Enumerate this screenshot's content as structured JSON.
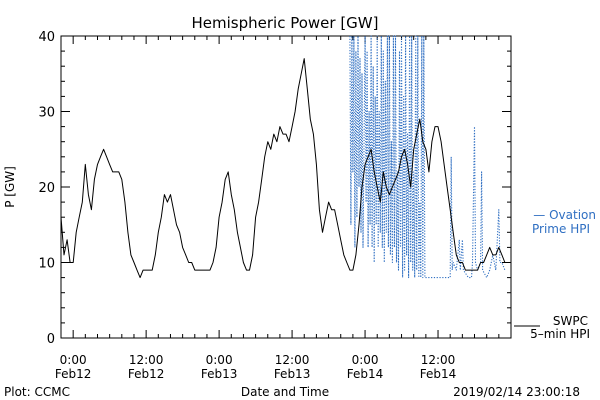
{
  "chart_data": {
    "type": "line",
    "title": "Hemispheric Power [GW]",
    "ylabel": "P [GW]",
    "xlabel": "Date and Time",
    "ylim": [
      0,
      40
    ],
    "xlim": [
      "2019-02-11T22:00",
      "2019-02-15T00:00"
    ],
    "y_ticks": [
      "0",
      "10",
      "20",
      "30",
      "40"
    ],
    "x_ticks": [
      {
        "time": "2019-02-12T00:00",
        "line1": "0:00",
        "line2": "Feb12"
      },
      {
        "time": "2019-02-12T12:00",
        "line1": "12:00",
        "line2": "Feb12"
      },
      {
        "time": "2019-02-13T00:00",
        "line1": "0:00",
        "line2": "Feb13"
      },
      {
        "time": "2019-02-13T12:00",
        "line1": "12:00",
        "line2": "Feb13"
      },
      {
        "time": "2019-02-14T00:00",
        "line1": "0:00",
        "line2": "Feb14"
      },
      {
        "time": "2019-02-14T12:00",
        "line1": "12:00",
        "line2": "Feb14"
      }
    ],
    "grid": false,
    "series": [
      {
        "name": "SWPC 5-min HPI",
        "color": "#000000",
        "style": "solid",
        "points": [
          [
            "2019-02-11T22:00",
            16
          ],
          [
            "2019-02-11T22:30",
            11
          ],
          [
            "2019-02-11T23:00",
            13
          ],
          [
            "2019-02-11T23:30",
            10
          ],
          [
            "2019-02-12T00:00",
            10
          ],
          [
            "2019-02-12T00:30",
            14
          ],
          [
            "2019-02-12T01:00",
            16
          ],
          [
            "2019-02-12T01:30",
            18
          ],
          [
            "2019-02-12T02:00",
            23
          ],
          [
            "2019-02-12T02:30",
            19
          ],
          [
            "2019-02-12T03:00",
            17
          ],
          [
            "2019-02-12T03:30",
            21
          ],
          [
            "2019-02-12T04:00",
            23
          ],
          [
            "2019-02-12T04:30",
            24
          ],
          [
            "2019-02-12T05:00",
            25
          ],
          [
            "2019-02-12T05:30",
            24
          ],
          [
            "2019-02-12T06:00",
            23
          ],
          [
            "2019-02-12T06:30",
            22
          ],
          [
            "2019-02-12T07:00",
            22
          ],
          [
            "2019-02-12T07:30",
            22
          ],
          [
            "2019-02-12T08:00",
            21
          ],
          [
            "2019-02-12T08:30",
            18
          ],
          [
            "2019-02-12T09:00",
            14
          ],
          [
            "2019-02-12T09:30",
            11
          ],
          [
            "2019-02-12T10:00",
            10
          ],
          [
            "2019-02-12T10:30",
            9
          ],
          [
            "2019-02-12T11:00",
            8
          ],
          [
            "2019-02-12T11:30",
            9
          ],
          [
            "2019-02-12T12:00",
            9
          ],
          [
            "2019-02-12T12:30",
            9
          ],
          [
            "2019-02-12T13:00",
            9
          ],
          [
            "2019-02-12T13:30",
            11
          ],
          [
            "2019-02-12T14:00",
            14
          ],
          [
            "2019-02-12T14:30",
            16
          ],
          [
            "2019-02-12T15:00",
            19
          ],
          [
            "2019-02-12T15:30",
            18
          ],
          [
            "2019-02-12T16:00",
            19
          ],
          [
            "2019-02-12T16:30",
            17
          ],
          [
            "2019-02-12T17:00",
            15
          ],
          [
            "2019-02-12T17:30",
            14
          ],
          [
            "2019-02-12T18:00",
            12
          ],
          [
            "2019-02-12T18:30",
            11
          ],
          [
            "2019-02-12T19:00",
            10
          ],
          [
            "2019-02-12T19:30",
            10
          ],
          [
            "2019-02-12T20:00",
            9
          ],
          [
            "2019-02-12T20:30",
            9
          ],
          [
            "2019-02-12T21:00",
            9
          ],
          [
            "2019-02-12T21:30",
            9
          ],
          [
            "2019-02-12T22:00",
            9
          ],
          [
            "2019-02-12T22:30",
            9
          ],
          [
            "2019-02-12T23:00",
            10
          ],
          [
            "2019-02-12T23:30",
            12
          ],
          [
            "2019-02-13T00:00",
            16
          ],
          [
            "2019-02-13T00:30",
            18
          ],
          [
            "2019-02-13T01:00",
            21
          ],
          [
            "2019-02-13T01:30",
            22
          ],
          [
            "2019-02-13T02:00",
            19
          ],
          [
            "2019-02-13T02:30",
            17
          ],
          [
            "2019-02-13T03:00",
            14
          ],
          [
            "2019-02-13T03:30",
            12
          ],
          [
            "2019-02-13T04:00",
            10
          ],
          [
            "2019-02-13T04:30",
            9
          ],
          [
            "2019-02-13T05:00",
            9
          ],
          [
            "2019-02-13T05:30",
            11
          ],
          [
            "2019-02-13T06:00",
            16
          ],
          [
            "2019-02-13T06:30",
            18
          ],
          [
            "2019-02-13T07:00",
            21
          ],
          [
            "2019-02-13T07:30",
            24
          ],
          [
            "2019-02-13T08:00",
            26
          ],
          [
            "2019-02-13T08:30",
            25
          ],
          [
            "2019-02-13T09:00",
            27
          ],
          [
            "2019-02-13T09:30",
            26
          ],
          [
            "2019-02-13T10:00",
            28
          ],
          [
            "2019-02-13T10:30",
            27
          ],
          [
            "2019-02-13T11:00",
            27
          ],
          [
            "2019-02-13T11:30",
            26
          ],
          [
            "2019-02-13T12:00",
            28
          ],
          [
            "2019-02-13T12:30",
            30
          ],
          [
            "2019-02-13T13:00",
            33
          ],
          [
            "2019-02-13T13:30",
            35
          ],
          [
            "2019-02-13T14:00",
            37
          ],
          [
            "2019-02-13T14:30",
            33
          ],
          [
            "2019-02-13T15:00",
            29
          ],
          [
            "2019-02-13T15:30",
            27
          ],
          [
            "2019-02-13T16:00",
            23
          ],
          [
            "2019-02-13T16:30",
            17
          ],
          [
            "2019-02-13T17:00",
            14
          ],
          [
            "2019-02-13T17:30",
            16
          ],
          [
            "2019-02-13T18:00",
            18
          ],
          [
            "2019-02-13T18:30",
            17
          ],
          [
            "2019-02-13T19:00",
            17
          ],
          [
            "2019-02-13T19:30",
            15
          ],
          [
            "2019-02-13T20:00",
            13
          ],
          [
            "2019-02-13T20:30",
            11
          ],
          [
            "2019-02-13T21:00",
            10
          ],
          [
            "2019-02-13T21:30",
            9
          ],
          [
            "2019-02-13T22:00",
            9
          ],
          [
            "2019-02-13T22:30",
            11
          ],
          [
            "2019-02-13T23:00",
            15
          ],
          [
            "2019-02-13T23:30",
            20
          ],
          [
            "2019-02-14T00:00",
            23
          ],
          [
            "2019-02-14T00:30",
            24
          ],
          [
            "2019-02-14T01:00",
            25
          ],
          [
            "2019-02-14T01:30",
            22
          ],
          [
            "2019-02-14T02:00",
            20
          ],
          [
            "2019-02-14T02:30",
            18
          ],
          [
            "2019-02-14T03:00",
            22
          ],
          [
            "2019-02-14T03:30",
            20
          ],
          [
            "2019-02-14T04:00",
            19
          ],
          [
            "2019-02-14T04:30",
            20
          ],
          [
            "2019-02-14T05:00",
            21
          ],
          [
            "2019-02-14T05:30",
            22
          ],
          [
            "2019-02-14T06:00",
            24
          ],
          [
            "2019-02-14T06:30",
            25
          ],
          [
            "2019-02-14T07:00",
            23
          ],
          [
            "2019-02-14T07:30",
            20
          ],
          [
            "2019-02-14T08:00",
            25
          ],
          [
            "2019-02-14T08:30",
            27
          ],
          [
            "2019-02-14T09:00",
            29
          ],
          [
            "2019-02-14T09:30",
            26
          ],
          [
            "2019-02-14T10:00",
            25
          ],
          [
            "2019-02-14T10:30",
            22
          ],
          [
            "2019-02-14T11:00",
            26
          ],
          [
            "2019-02-14T11:30",
            28
          ],
          [
            "2019-02-14T12:00",
            28
          ],
          [
            "2019-02-14T12:30",
            26
          ],
          [
            "2019-02-14T13:00",
            23
          ],
          [
            "2019-02-14T13:30",
            20
          ],
          [
            "2019-02-14T14:00",
            17
          ],
          [
            "2019-02-14T14:30",
            14
          ],
          [
            "2019-02-14T15:00",
            11
          ],
          [
            "2019-02-14T15:30",
            10
          ],
          [
            "2019-02-14T16:00",
            10
          ],
          [
            "2019-02-14T16:30",
            9
          ],
          [
            "2019-02-14T17:00",
            9
          ],
          [
            "2019-02-14T17:30",
            9
          ],
          [
            "2019-02-14T18:00",
            9
          ],
          [
            "2019-02-14T18:30",
            9
          ],
          [
            "2019-02-14T19:00",
            10
          ],
          [
            "2019-02-14T19:30",
            10
          ],
          [
            "2019-02-14T20:00",
            11
          ],
          [
            "2019-02-14T20:30",
            12
          ],
          [
            "2019-02-14T21:00",
            11
          ],
          [
            "2019-02-14T21:30",
            11
          ],
          [
            "2019-02-14T22:00",
            12
          ],
          [
            "2019-02-14T22:30",
            11
          ],
          [
            "2019-02-14T23:00",
            10
          ]
        ]
      },
      {
        "name": "Ovation Prime HPI",
        "color": "#2f6fc2",
        "style": "dotted",
        "points": [
          [
            "2019-02-13T21:30",
            40
          ],
          [
            "2019-02-13T21:40",
            15
          ],
          [
            "2019-02-13T21:50",
            40
          ],
          [
            "2019-02-13T22:00",
            22
          ],
          [
            "2019-02-13T22:10",
            40
          ],
          [
            "2019-02-13T22:20",
            12
          ],
          [
            "2019-02-13T22:30",
            38
          ],
          [
            "2019-02-13T22:40",
            16
          ],
          [
            "2019-02-13T22:50",
            40
          ],
          [
            "2019-02-13T23:00",
            20
          ],
          [
            "2019-02-13T23:10",
            37
          ],
          [
            "2019-02-13T23:20",
            14
          ],
          [
            "2019-02-13T23:30",
            35
          ],
          [
            "2019-02-13T23:40",
            12
          ],
          [
            "2019-02-14T00:00",
            40
          ],
          [
            "2019-02-14T00:10",
            18
          ],
          [
            "2019-02-14T00:20",
            38
          ],
          [
            "2019-02-14T00:30",
            12
          ],
          [
            "2019-02-14T00:40",
            30
          ],
          [
            "2019-02-14T00:50",
            15
          ],
          [
            "2019-02-14T01:00",
            40
          ],
          [
            "2019-02-14T01:10",
            12
          ],
          [
            "2019-02-14T01:20",
            36
          ],
          [
            "2019-02-14T01:30",
            10
          ],
          [
            "2019-02-14T01:40",
            32
          ],
          [
            "2019-02-14T01:50",
            15
          ],
          [
            "2019-02-14T02:00",
            40
          ],
          [
            "2019-02-14T02:10",
            12
          ],
          [
            "2019-02-14T02:20",
            30
          ],
          [
            "2019-02-14T02:30",
            14
          ],
          [
            "2019-02-14T02:40",
            40
          ],
          [
            "2019-02-14T02:50",
            12
          ],
          [
            "2019-02-14T03:00",
            38
          ],
          [
            "2019-02-14T03:10",
            10
          ],
          [
            "2019-02-14T03:20",
            34
          ],
          [
            "2019-02-14T03:30",
            14
          ],
          [
            "2019-02-14T03:40",
            40
          ],
          [
            "2019-02-14T03:50",
            12
          ],
          [
            "2019-02-14T04:00",
            40
          ],
          [
            "2019-02-14T04:10",
            11
          ],
          [
            "2019-02-14T04:20",
            26
          ],
          [
            "2019-02-14T04:30",
            10
          ],
          [
            "2019-02-14T04:40",
            40
          ],
          [
            "2019-02-14T04:50",
            12
          ],
          [
            "2019-02-14T05:00",
            40
          ],
          [
            "2019-02-14T05:10",
            10
          ],
          [
            "2019-02-14T05:20",
            22
          ],
          [
            "2019-02-14T05:30",
            9
          ],
          [
            "2019-02-14T05:40",
            38
          ],
          [
            "2019-02-14T05:50",
            12
          ],
          [
            "2019-02-14T06:00",
            40
          ],
          [
            "2019-02-14T06:10",
            8
          ],
          [
            "2019-02-14T06:20",
            32
          ],
          [
            "2019-02-14T06:30",
            9
          ],
          [
            "2019-02-14T06:40",
            40
          ],
          [
            "2019-02-14T06:50",
            11
          ],
          [
            "2019-02-14T07:00",
            27
          ],
          [
            "2019-02-14T07:10",
            8
          ],
          [
            "2019-02-14T07:20",
            40
          ],
          [
            "2019-02-14T07:30",
            10
          ],
          [
            "2019-02-14T07:40",
            40
          ],
          [
            "2019-02-14T07:50",
            9
          ],
          [
            "2019-02-14T08:00",
            22
          ],
          [
            "2019-02-14T08:10",
            8
          ],
          [
            "2019-02-14T08:20",
            40
          ],
          [
            "2019-02-14T08:30",
            9
          ],
          [
            "2019-02-14T08:40",
            40
          ],
          [
            "2019-02-14T08:50",
            8
          ],
          [
            "2019-02-14T09:00",
            18
          ],
          [
            "2019-02-14T09:10",
            8
          ],
          [
            "2019-02-14T09:20",
            40
          ],
          [
            "2019-02-14T09:30",
            8
          ],
          [
            "2019-02-14T09:40",
            40
          ],
          [
            "2019-02-14T09:50",
            8
          ],
          [
            "2019-02-14T10:00",
            8
          ],
          [
            "2019-02-14T11:00",
            8
          ],
          [
            "2019-02-14T11:30",
            8
          ],
          [
            "2019-02-14T12:00",
            8
          ],
          [
            "2019-02-14T13:00",
            8
          ],
          [
            "2019-02-14T13:30",
            8
          ],
          [
            "2019-02-14T14:00",
            8
          ],
          [
            "2019-02-14T14:10",
            24
          ],
          [
            "2019-02-14T14:20",
            9
          ],
          [
            "2019-02-14T14:30",
            10
          ],
          [
            "2019-02-14T15:00",
            9
          ],
          [
            "2019-02-14T15:30",
            13
          ],
          [
            "2019-02-14T15:40",
            9
          ],
          [
            "2019-02-14T16:00",
            13
          ],
          [
            "2019-02-14T16:10",
            9
          ],
          [
            "2019-02-14T17:00",
            8
          ],
          [
            "2019-02-14T17:30",
            8
          ],
          [
            "2019-02-14T17:40",
            10
          ],
          [
            "2019-02-14T18:00",
            28
          ],
          [
            "2019-02-14T18:10",
            10
          ],
          [
            "2019-02-14T18:30",
            9
          ],
          [
            "2019-02-14T19:00",
            10
          ],
          [
            "2019-02-14T19:10",
            22
          ],
          [
            "2019-02-14T19:20",
            9
          ],
          [
            "2019-02-14T20:00",
            8
          ],
          [
            "2019-02-14T20:30",
            9
          ],
          [
            "2019-02-14T21:00",
            11
          ],
          [
            "2019-02-14T21:30",
            9
          ],
          [
            "2019-02-14T22:00",
            17
          ],
          [
            "2019-02-14T22:10",
            10
          ],
          [
            "2019-02-14T22:30",
            10
          ],
          [
            "2019-02-14T23:00",
            9
          ]
        ]
      }
    ]
  },
  "legend": {
    "ovation_line1": "— Ovation",
    "ovation_line2": "Prime HPI",
    "swpc_line1": "SWPC",
    "swpc_line2": "5–min HPI"
  },
  "footer": {
    "plot_credit": "Plot: CCMC",
    "timestamp": "2019/02/14 23:00:18"
  }
}
